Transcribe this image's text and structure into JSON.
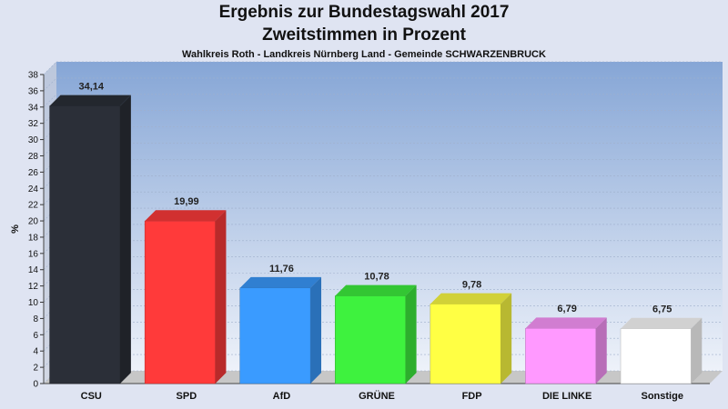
{
  "title_line1": "Ergebnis zur Bundestagswahl 2017",
  "title_line2": "Zweitstimmen in Prozent",
  "subtitle": "Wahlkreis Roth - Landkreis Nürnberg Land - Gemeinde SCHWARZENBRUCK",
  "chart_data": {
    "type": "bar",
    "title": "Ergebnis zur Bundestagswahl 2017 Zweitstimmen in Prozent",
    "subtitle": "Wahlkreis Roth - Landkreis Nürnberg Land - Gemeinde SCHWARZENBRUCK",
    "xlabel": "",
    "ylabel": "%",
    "ylim": [
      0,
      38
    ],
    "ytick_step": 2,
    "grid": true,
    "categories": [
      "CSU",
      "SPD",
      "AfD",
      "GRÜNE",
      "FDP",
      "DIE LINKE",
      "Sonstige"
    ],
    "values": [
      34.14,
      19.99,
      11.76,
      10.78,
      9.78,
      6.79,
      6.75
    ],
    "value_labels": [
      "34,14",
      "19,99",
      "11,76",
      "10,78",
      "9,78",
      "6,79",
      "6,75"
    ],
    "colors": [
      "#2b2f38",
      "#ff3a3a",
      "#3a9bff",
      "#3ef23e",
      "#ffff44",
      "#ff99ff",
      "#ffffff"
    ]
  }
}
